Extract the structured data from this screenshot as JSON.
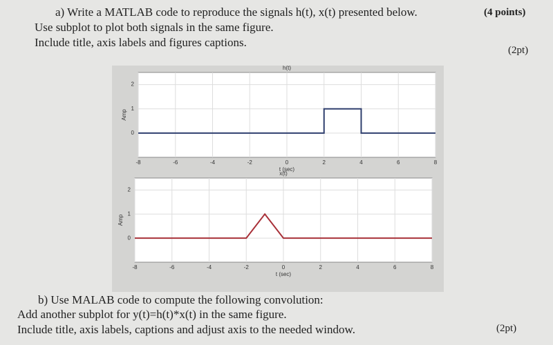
{
  "document": {
    "part_a": {
      "lines": [
        "a) Write a MATLAB code to reproduce the signals h(t), x(t) presented below.",
        "Use subplot to plot both signals in the same figure.",
        "Include title, axis labels and figures captions."
      ],
      "points": "(4 points)",
      "subpoints": "(2pt)"
    },
    "part_b": {
      "lines": [
        "b) Use MALAB code to compute the following convolution:",
        "Add another subplot for y(t)=h(t)*x(t) in the same figure.",
        "Include title, axis labels, captions and adjust axis to the needed window."
      ],
      "points": "(2pt)"
    }
  },
  "chart_data": [
    {
      "type": "line",
      "title": "h(t)",
      "xlabel": "t (sec)",
      "ylabel": "Amp",
      "x": [
        -8,
        2,
        2,
        4,
        4,
        8
      ],
      "y": [
        0,
        0,
        1,
        1,
        0,
        0
      ],
      "color": "#2f3f6e",
      "xlim": [
        -8,
        8
      ],
      "xticks": [
        -8,
        -6,
        -4,
        -2,
        0,
        2,
        4,
        6,
        8
      ],
      "ylim": [
        -1,
        2.5
      ],
      "yticks": [
        0,
        1,
        2
      ],
      "grid": true
    },
    {
      "type": "line",
      "title": "x(t)",
      "xlabel": "t (sec)",
      "ylabel": "Amp",
      "x": [
        -8,
        -2,
        -1,
        0,
        8
      ],
      "y": [
        0,
        0,
        1,
        0,
        0
      ],
      "color": "#a83038",
      "xlim": [
        -8,
        8
      ],
      "xticks": [
        -8,
        -6,
        -4,
        -2,
        0,
        2,
        4,
        6,
        8
      ],
      "ylim": [
        -1,
        2.5
      ],
      "yticks": [
        0,
        1,
        2
      ],
      "grid": true
    }
  ]
}
